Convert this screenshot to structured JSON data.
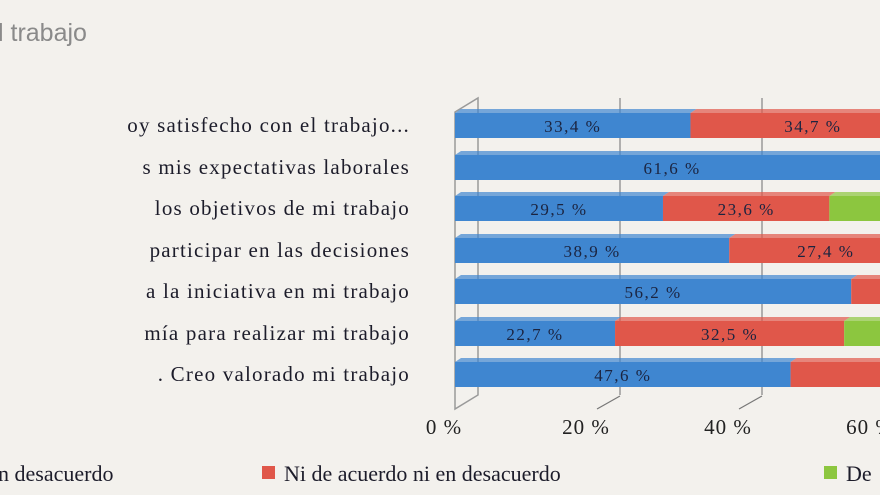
{
  "chart_data": {
    "type": "bar",
    "orientation": "horizontal",
    "stacked": true,
    "title": "l trabajo",
    "categories": [
      "oy satisfecho con el trabajo...",
      "s mis expectativas laborales",
      " los objetivos de mi trabajo",
      " participar en las decisiones",
      "a la iniciativa en mi trabajo",
      "mía para realizar mi trabajo",
      ".   Creo valorado mi trabajo"
    ],
    "series": [
      {
        "name": "n desacuerdo",
        "color": "#3f86d0",
        "values": [
          33.4,
          61.6,
          29.5,
          38.9,
          56.2,
          22.7,
          47.6
        ]
      },
      {
        "name": "Ni de acuerdo ni en desacuerdo",
        "color": "#e0574a",
        "values": [
          34.7,
          null,
          23.6,
          27.4,
          null,
          32.5,
          null
        ]
      },
      {
        "name": "De",
        "color": "#8cc63f",
        "values": [
          null,
          null,
          null,
          null,
          null,
          null,
          null
        ]
      }
    ],
    "data_labels": [
      [
        "33,4 %",
        "34,7 %"
      ],
      [
        "61,6 %"
      ],
      [
        "29,5 %",
        "23,6 %"
      ],
      [
        "38,9 %",
        "27,4 %"
      ],
      [
        "56,2 %"
      ],
      [
        "22,7 %",
        "32,5 %"
      ],
      [
        "47,6 %"
      ]
    ],
    "x_ticks": [
      "0 %",
      "20 %",
      "40 %",
      "60 %"
    ],
    "xlim": [
      0,
      100
    ],
    "grid": true,
    "legend_position": "bottom"
  }
}
